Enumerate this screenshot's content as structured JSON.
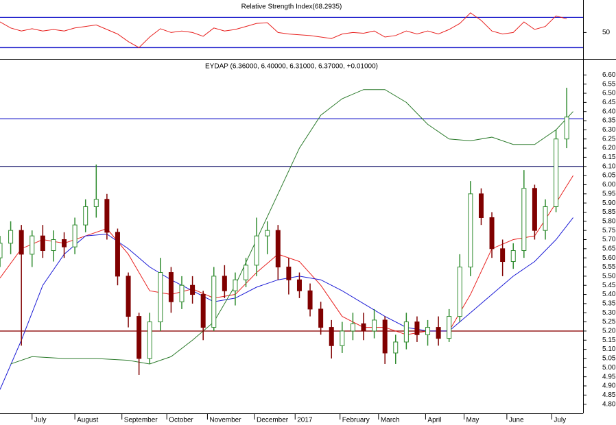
{
  "chart_data": [
    {
      "type": "line",
      "title": "Relative Strength Index(68.2935)",
      "x": [
        0,
        5,
        10,
        15,
        20,
        25,
        30,
        35,
        40,
        45,
        50,
        55,
        60,
        65,
        70,
        75,
        80,
        85,
        90,
        95,
        100,
        105,
        110,
        115,
        120,
        125,
        130,
        135,
        140,
        145,
        150,
        155,
        160,
        165,
        170,
        175,
        180,
        185,
        190,
        195,
        200,
        205,
        210,
        215,
        220,
        225,
        230,
        235,
        240,
        245,
        250,
        255,
        260,
        265
      ],
      "series": [
        {
          "color": "#e8201e",
          "values": [
            64,
            56,
            52,
            55,
            52,
            54,
            52,
            56,
            58,
            60,
            54,
            48,
            38,
            30,
            44,
            55,
            50,
            52,
            50,
            45,
            56,
            52,
            54,
            58,
            62,
            63,
            50,
            48,
            47,
            46,
            44,
            42,
            48,
            50,
            49,
            52,
            44,
            46,
            52,
            48,
            52,
            48,
            54,
            62,
            76,
            66,
            52,
            48,
            50,
            64,
            54,
            58,
            72,
            68
          ]
        }
      ],
      "hlines": [
        {
          "value": 70,
          "color": "#2222cc"
        },
        {
          "value": 30,
          "color": "#2222cc"
        }
      ],
      "xlim": [
        0,
        272
      ],
      "ylim": [
        15,
        93
      ],
      "yticks": [
        50
      ]
    },
    {
      "type": "candlestick",
      "title": "EYDAP (6.36000, 6.40000, 6.31000, 6.37000, +0.01000)",
      "ohlc": {
        "x": [
          0,
          5,
          10,
          15,
          20,
          25,
          30,
          35,
          40,
          45,
          50,
          55,
          60,
          65,
          70,
          75,
          80,
          85,
          90,
          95,
          100,
          105,
          110,
          115,
          120,
          125,
          130,
          135,
          140,
          145,
          150,
          155,
          160,
          165,
          170,
          175,
          180,
          185,
          190,
          195,
          200,
          205,
          210,
          215,
          220,
          225,
          230,
          235,
          240,
          245,
          250,
          255,
          260,
          265
        ],
        "open": [
          5.6,
          5.68,
          5.75,
          5.62,
          5.72,
          5.64,
          5.7,
          5.66,
          5.78,
          5.88,
          5.92,
          5.74,
          5.5,
          5.28,
          5.05,
          5.25,
          5.52,
          5.36,
          5.45,
          5.4,
          5.22,
          5.5,
          5.42,
          5.48,
          5.56,
          5.72,
          5.75,
          5.55,
          5.48,
          5.42,
          5.32,
          5.22,
          5.12,
          5.2,
          5.24,
          5.2,
          5.26,
          5.08,
          5.14,
          5.25,
          5.18,
          5.22,
          5.16,
          5.28,
          5.55,
          5.95,
          5.82,
          5.65,
          5.58,
          5.64,
          5.98,
          5.75,
          5.88,
          6.25
        ],
        "high": [
          5.72,
          5.8,
          5.78,
          5.75,
          5.78,
          5.75,
          5.74,
          5.82,
          5.92,
          6.11,
          5.95,
          5.76,
          5.52,
          5.3,
          5.3,
          5.6,
          5.55,
          5.5,
          5.5,
          5.42,
          5.55,
          5.56,
          5.52,
          5.6,
          5.82,
          5.8,
          5.78,
          5.6,
          5.52,
          5.46,
          5.36,
          5.26,
          5.25,
          5.3,
          5.3,
          5.32,
          5.28,
          5.18,
          5.3,
          5.28,
          5.26,
          5.28,
          5.32,
          5.62,
          6.02,
          5.98,
          5.85,
          5.7,
          5.68,
          6.08,
          6.0,
          5.92,
          6.3,
          6.53
        ],
        "low": [
          5.55,
          5.62,
          5.12,
          5.55,
          5.6,
          5.58,
          5.6,
          5.62,
          5.74,
          5.82,
          5.7,
          5.45,
          5.22,
          4.96,
          5.02,
          5.2,
          5.3,
          5.32,
          5.35,
          5.15,
          5.2,
          5.38,
          5.34,
          5.44,
          5.5,
          5.62,
          5.48,
          5.4,
          5.38,
          5.28,
          5.18,
          5.05,
          5.08,
          5.15,
          5.15,
          5.16,
          5.02,
          5.02,
          5.1,
          5.14,
          5.12,
          5.12,
          5.14,
          5.25,
          5.5,
          5.78,
          5.6,
          5.5,
          5.54,
          5.6,
          5.7,
          5.7,
          5.85,
          6.2
        ],
        "close": [
          5.68,
          5.75,
          5.62,
          5.72,
          5.64,
          5.7,
          5.66,
          5.78,
          5.88,
          5.92,
          5.74,
          5.5,
          5.28,
          5.05,
          5.25,
          5.52,
          5.36,
          5.45,
          5.4,
          5.22,
          5.5,
          5.42,
          5.48,
          5.56,
          5.72,
          5.75,
          5.55,
          5.48,
          5.42,
          5.32,
          5.22,
          5.12,
          5.2,
          5.24,
          5.2,
          5.26,
          5.08,
          5.14,
          5.25,
          5.18,
          5.22,
          5.16,
          5.28,
          5.55,
          5.95,
          5.82,
          5.65,
          5.58,
          5.64,
          5.98,
          5.75,
          5.88,
          6.25,
          6.37
        ]
      },
      "up_color": "#2e8b2e",
      "down_color": "#800000",
      "series": [
        {
          "color": "#e8201e",
          "x": [
            0,
            10,
            20,
            30,
            40,
            50,
            60,
            70,
            80,
            90,
            100,
            110,
            120,
            130,
            140,
            150,
            160,
            170,
            180,
            190,
            200,
            210,
            220,
            230,
            240,
            250,
            260,
            268
          ],
          "values": [
            5.49,
            5.65,
            5.7,
            5.68,
            5.72,
            5.76,
            5.62,
            5.42,
            5.4,
            5.43,
            5.38,
            5.4,
            5.52,
            5.62,
            5.58,
            5.45,
            5.28,
            5.22,
            5.22,
            5.18,
            5.2,
            5.2,
            5.4,
            5.65,
            5.7,
            5.72,
            5.9,
            6.05
          ]
        },
        {
          "color": "#1a1ad6",
          "x": [
            0,
            10,
            20,
            30,
            40,
            50,
            60,
            70,
            80,
            90,
            100,
            110,
            120,
            130,
            140,
            150,
            160,
            170,
            180,
            190,
            200,
            210,
            220,
            230,
            240,
            250,
            260,
            268
          ],
          "values": [
            4.88,
            5.15,
            5.45,
            5.62,
            5.72,
            5.73,
            5.65,
            5.55,
            5.48,
            5.42,
            5.36,
            5.38,
            5.44,
            5.48,
            5.5,
            5.48,
            5.42,
            5.35,
            5.28,
            5.22,
            5.2,
            5.2,
            5.3,
            5.4,
            5.5,
            5.58,
            5.7,
            5.82
          ]
        },
        {
          "color": "#2a7a2a",
          "x": [
            5,
            15,
            30,
            45,
            60,
            70,
            80,
            90,
            100,
            110,
            120,
            130,
            140,
            150,
            160,
            170,
            180,
            190,
            200,
            210,
            220,
            230,
            240,
            250,
            260,
            268
          ],
          "values": [
            5.02,
            5.06,
            5.05,
            5.05,
            5.04,
            5.02,
            5.06,
            5.15,
            5.25,
            5.45,
            5.7,
            5.95,
            6.2,
            6.38,
            6.47,
            6.52,
            6.52,
            6.45,
            6.33,
            6.25,
            6.24,
            6.26,
            6.22,
            6.22,
            6.3,
            6.4
          ]
        }
      ],
      "hlines": [
        {
          "value": 6.36,
          "color": "#2222cc"
        },
        {
          "value": 6.1,
          "color": "#1a1a6e"
        },
        {
          "value": 5.2,
          "color": "#8b0000"
        }
      ],
      "xlim": [
        0,
        272
      ],
      "ylim": [
        4.75,
        6.68
      ],
      "xticks": [
        {
          "value": 15,
          "label": "July"
        },
        {
          "value": 35,
          "label": "August"
        },
        {
          "value": 57,
          "label": "September"
        },
        {
          "value": 78,
          "label": "October"
        },
        {
          "value": 97,
          "label": "November"
        },
        {
          "value": 119,
          "label": "December"
        },
        {
          "value": 138,
          "label": "2017"
        },
        {
          "value": 159,
          "label": "February"
        },
        {
          "value": 177,
          "label": "March"
        },
        {
          "value": 199,
          "label": "April"
        },
        {
          "value": 217,
          "label": "May"
        },
        {
          "value": 237,
          "label": "June"
        },
        {
          "value": 258,
          "label": "July"
        }
      ],
      "yticks": [
        {
          "value": 6.6,
          "label": "6.60"
        },
        {
          "value": 6.55,
          "label": "6.55"
        },
        {
          "value": 6.5,
          "label": "6.50"
        },
        {
          "value": 6.45,
          "label": "6.45"
        },
        {
          "value": 6.4,
          "label": "6.40"
        },
        {
          "value": 6.35,
          "label": "6.35"
        },
        {
          "value": 6.3,
          "label": "6.30"
        },
        {
          "value": 6.25,
          "label": "6.25"
        },
        {
          "value": 6.2,
          "label": "6.20"
        },
        {
          "value": 6.15,
          "label": "6.15"
        },
        {
          "value": 6.1,
          "label": "6.10"
        },
        {
          "value": 6.05,
          "label": "6.05"
        },
        {
          "value": 6.0,
          "label": "6.00"
        },
        {
          "value": 5.95,
          "label": "5.95"
        },
        {
          "value": 5.9,
          "label": "5.90"
        },
        {
          "value": 5.85,
          "label": "5.85"
        },
        {
          "value": 5.8,
          "label": "5.80"
        },
        {
          "value": 5.75,
          "label": "5.75"
        },
        {
          "value": 5.7,
          "label": "5.70"
        },
        {
          "value": 5.65,
          "label": "5.65"
        },
        {
          "value": 5.6,
          "label": "5.60"
        },
        {
          "value": 5.55,
          "label": "5.55"
        },
        {
          "value": 5.5,
          "label": "5.50"
        },
        {
          "value": 5.45,
          "label": "5.45"
        },
        {
          "value": 5.4,
          "label": "5.40"
        },
        {
          "value": 5.35,
          "label": "5.35"
        },
        {
          "value": 5.3,
          "label": "5.30"
        },
        {
          "value": 5.25,
          "label": "5.25"
        },
        {
          "value": 5.2,
          "label": "5.20"
        },
        {
          "value": 5.15,
          "label": "5.15"
        },
        {
          "value": 5.1,
          "label": "5.10"
        },
        {
          "value": 5.05,
          "label": "5.05"
        },
        {
          "value": 5.0,
          "label": "5.00"
        },
        {
          "value": 4.95,
          "label": "4.95"
        },
        {
          "value": 4.9,
          "label": "4.90"
        },
        {
          "value": 4.85,
          "label": "4.85"
        },
        {
          "value": 4.8,
          "label": "4.80"
        }
      ]
    }
  ]
}
